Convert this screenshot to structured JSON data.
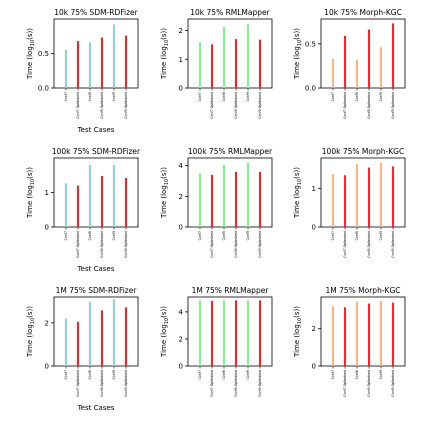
{
  "colors": {
    "normal": [
      "#8fd6cd",
      "#90e69a",
      "#f0b88a"
    ],
    "optimized": "#d8313a",
    "axis": "#000000"
  },
  "chart_data": [
    {
      "type": "bar",
      "title": "10k 75% SDM-RDFizer",
      "xlabel": "Test Cases",
      "ylabel": "Time (log10(s))",
      "ylim": [
        0,
        1.0
      ],
      "yticks": [
        0.0,
        0.5
      ],
      "ytick_labels": [
        "0.0",
        "0.5"
      ],
      "categories": [
        "Conf7",
        "Conf7 Optimized",
        "Conf8",
        "Conf8 Optimized",
        "Conf9",
        "Conf9 Optimized"
      ],
      "values": [
        0.55,
        0.68,
        0.66,
        0.73,
        0.92,
        0.76
      ]
    },
    {
      "type": "bar",
      "title": "10k 75% RMLMapper",
      "xlabel": "",
      "ylabel": "Time (log10(s))",
      "ylim": [
        0,
        2.4
      ],
      "yticks": [
        0,
        1,
        2
      ],
      "ytick_labels": [
        "0",
        "1",
        "2"
      ],
      "categories": [
        "Conf7",
        "Conf7 Optimized",
        "Conf8",
        "Conf8 Optimized",
        "Conf9",
        "Conf9 Optimized"
      ],
      "values": [
        1.6,
        1.52,
        2.12,
        1.7,
        2.22,
        1.68
      ]
    },
    {
      "type": "bar",
      "title": "10k 75% Morph-KGC",
      "xlabel": "",
      "ylabel": "Time (log10(s))",
      "ylim": [
        0,
        0.78
      ],
      "yticks": [
        0.0,
        0.5
      ],
      "ytick_labels": [
        "0.0",
        "0.5"
      ],
      "categories": [
        "Conf7",
        "Conf7 Optimized",
        "Conf8",
        "Conf8 Optimized",
        "Conf9",
        "Conf9 Optimized"
      ],
      "values": [
        0.33,
        0.59,
        0.32,
        0.66,
        0.46,
        0.73
      ]
    },
    {
      "type": "bar",
      "title": "100k 75% SDM-RDFizer",
      "xlabel": "Test Cases",
      "ylabel": "Time (log10(s))",
      "ylim": [
        0,
        2.0
      ],
      "yticks": [
        0,
        1
      ],
      "ytick_labels": [
        "0",
        "1"
      ],
      "categories": [
        "Conf7",
        "Conf7 Optimized",
        "Conf8",
        "Conf8 Optimized",
        "Conf9",
        "Conf9 Optimized"
      ],
      "values": [
        1.27,
        1.2,
        1.8,
        1.48,
        1.8,
        1.42
      ]
    },
    {
      "type": "bar",
      "title": "100k 75% RMLMapper",
      "xlabel": "",
      "ylabel": "Time (log10(s))",
      "ylim": [
        0,
        4.5
      ],
      "yticks": [
        0,
        2,
        4
      ],
      "ytick_labels": [
        "0",
        "2",
        "4"
      ],
      "categories": [
        "Conf7",
        "Conf7 Optimized",
        "Conf8",
        "Conf8 Optimized",
        "Conf9",
        "Conf9 Optimized"
      ],
      "values": [
        3.5,
        3.4,
        4.05,
        3.6,
        4.2,
        3.6
      ]
    },
    {
      "type": "bar",
      "title": "100k 75% Morph-KGC",
      "xlabel": "",
      "ylabel": "Time (log10(s))",
      "ylim": [
        0,
        1.8
      ],
      "yticks": [
        0,
        1
      ],
      "ytick_labels": [
        "0",
        "1"
      ],
      "categories": [
        "Conf7",
        "Conf7 Optimized",
        "Conf8",
        "Conf8 Optimized",
        "Conf9",
        "Conf9 Optimized"
      ],
      "values": [
        1.38,
        1.35,
        1.65,
        1.55,
        1.68,
        1.58
      ]
    },
    {
      "type": "bar",
      "title": "1M 75% SDM-RDFizer",
      "xlabel": "Test Cases",
      "ylabel": "Time (log10(s))",
      "ylim": [
        0,
        3.2
      ],
      "yticks": [
        0,
        2
      ],
      "ytick_labels": [
        "0",
        "2"
      ],
      "categories": [
        "Conf7",
        "Conf7 Optimized",
        "Conf8",
        "Conf8 Optimized",
        "Conf9",
        "Conf9 Optimized"
      ],
      "values": [
        2.2,
        2.05,
        2.98,
        2.58,
        3.1,
        2.72
      ]
    },
    {
      "type": "bar",
      "title": "1M 75% RMLMapper",
      "xlabel": "",
      "ylabel": "Time (log10(s))",
      "ylim": [
        0,
        5.1
      ],
      "yticks": [
        0,
        2,
        4
      ],
      "ytick_labels": [
        "0",
        "2",
        "4"
      ],
      "categories": [
        "Conf7",
        "Conf7 Optimized",
        "Conf8",
        "Conf8 Optimized",
        "Conf9",
        "Conf9 Optimized"
      ],
      "values": [
        4.85,
        4.82,
        4.85,
        4.85,
        4.85,
        4.85
      ]
    },
    {
      "type": "bar",
      "title": "1M 75% Morph-KGC",
      "xlabel": "",
      "ylabel": "Time (log10(s))",
      "ylim": [
        0,
        3.7
      ],
      "yticks": [
        0,
        2
      ],
      "ytick_labels": [
        "0",
        "2"
      ],
      "categories": [
        "Conf7",
        "Conf7 Optimized",
        "Conf8",
        "Conf8 Optimized",
        "Conf9",
        "Conf9 Optimized"
      ],
      "values": [
        3.2,
        3.15,
        3.45,
        3.35,
        3.5,
        3.4
      ]
    }
  ]
}
